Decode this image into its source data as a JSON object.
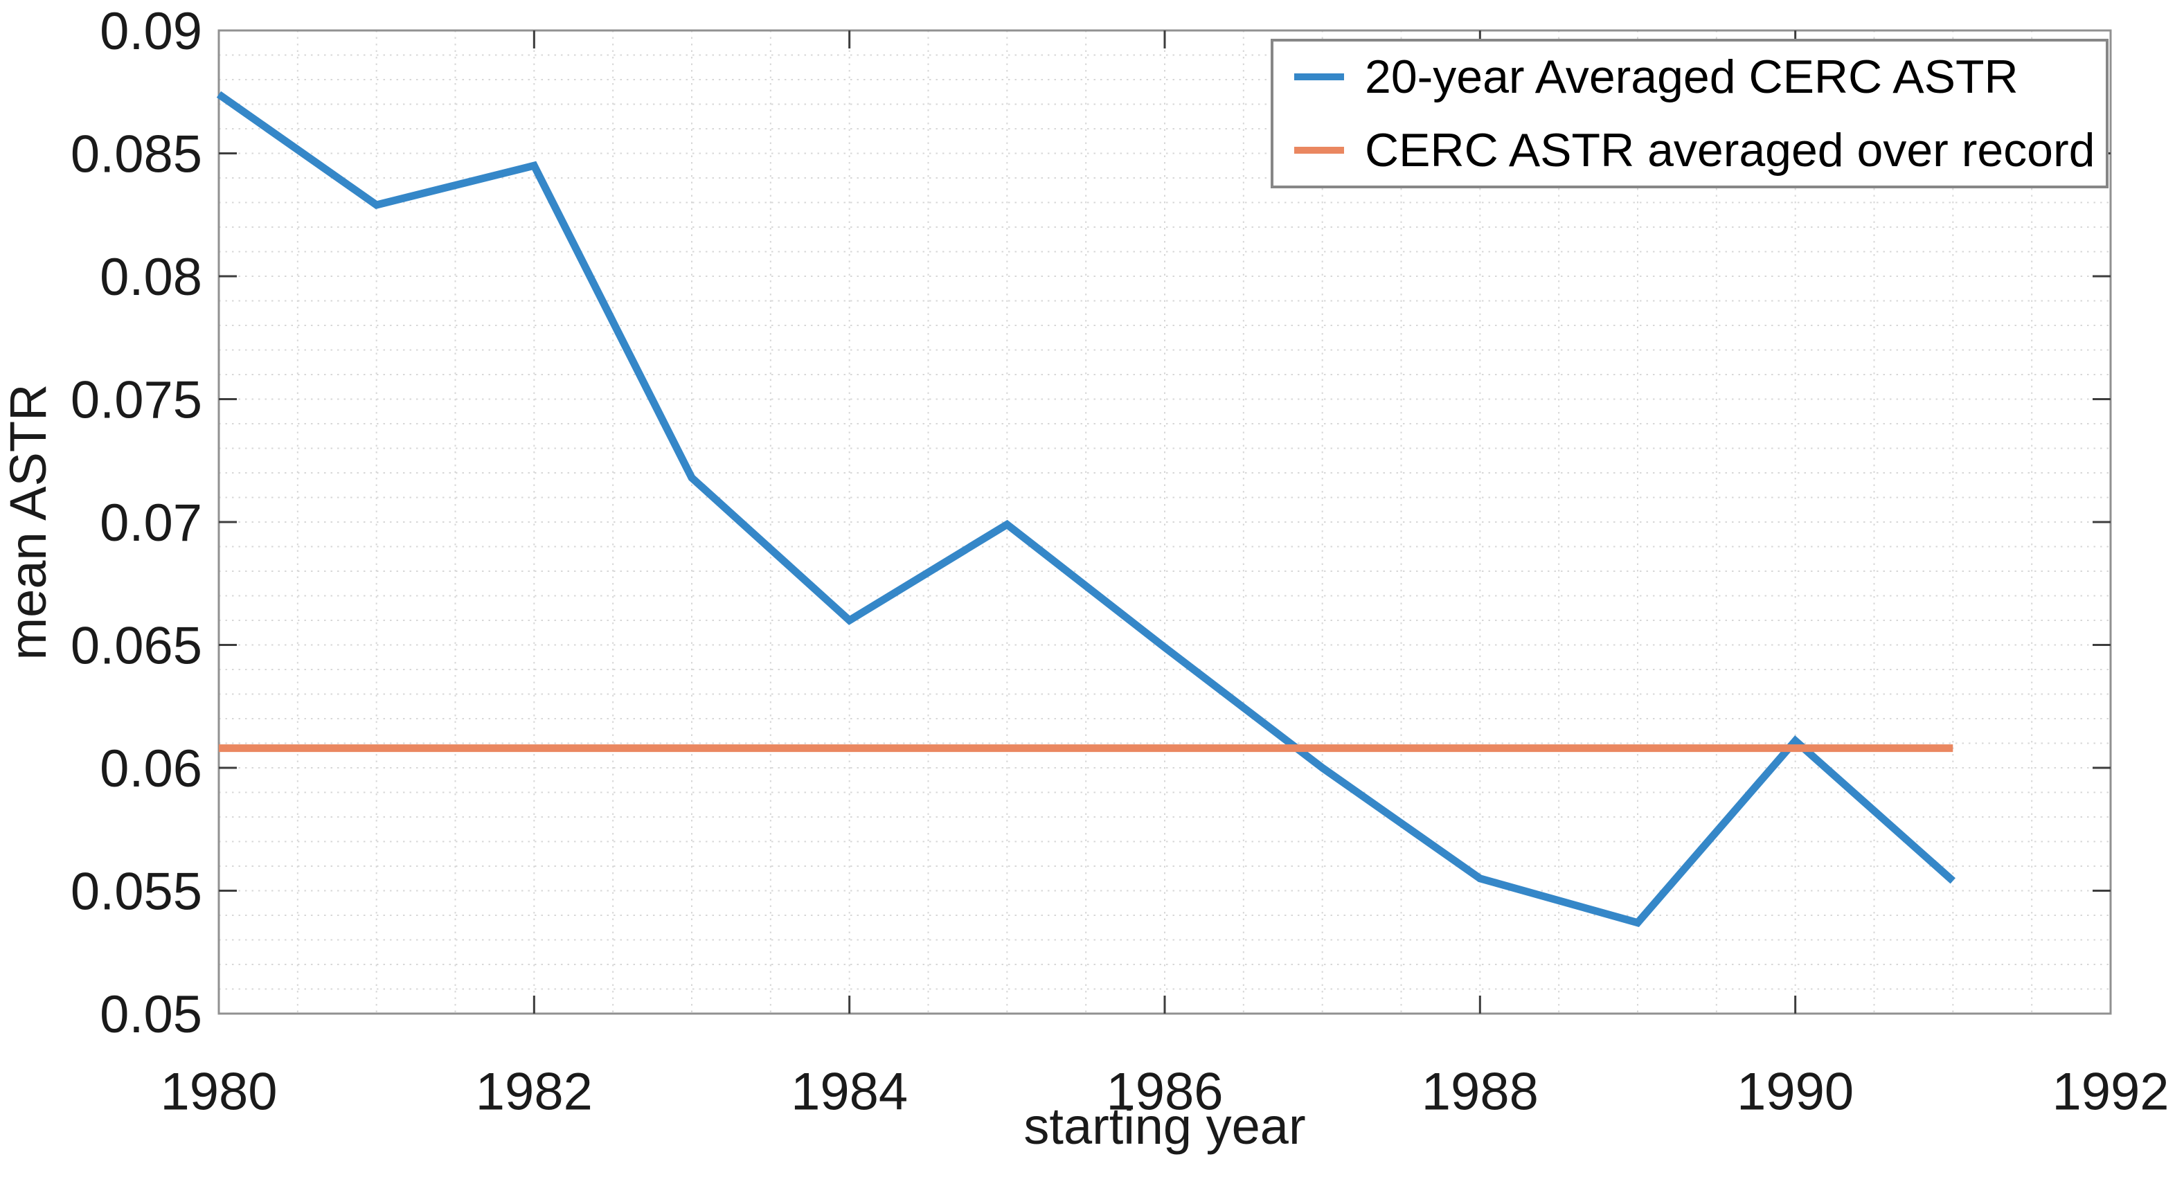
{
  "chart_data": {
    "type": "line",
    "title": "",
    "xlabel": "starting year",
    "ylabel": "mean ASTR",
    "xlim": [
      1980,
      1992
    ],
    "ylim": [
      0.05,
      0.09
    ],
    "x_major_ticks": [
      1980,
      1982,
      1984,
      1986,
      1988,
      1990,
      1992
    ],
    "x_tick_labels": [
      "1980",
      "1982",
      "1984",
      "1986",
      "1988",
      "1990",
      "1992"
    ],
    "y_major_ticks": [
      0.05,
      0.055,
      0.06,
      0.065,
      0.07,
      0.075,
      0.08,
      0.085,
      0.09
    ],
    "y_tick_labels": [
      "0.05",
      "0.055",
      "0.06",
      "0.065",
      "0.07",
      "0.075",
      "0.08",
      "0.085",
      "0.09"
    ],
    "x_minor_step": 0.5,
    "y_minor_step": 0.001,
    "grid": "minor-dotted",
    "legend_position": "northeast",
    "x": [
      1980,
      1981,
      1982,
      1983,
      1984,
      1985,
      1986,
      1987,
      1988,
      1989,
      1990,
      1991
    ],
    "series": [
      {
        "name": "20-year Averaged CERC ASTR",
        "color": "#3587C8",
        "values": [
          0.0874,
          0.0829,
          0.0845,
          0.0718,
          0.066,
          0.0699,
          0.0649,
          0.06,
          0.0555,
          0.0537,
          0.0611,
          0.0554
        ]
      },
      {
        "name": "CERC ASTR averaged over record",
        "color": "#EA8760",
        "constant_value": 0.0608,
        "values": [
          0.0608,
          0.0608,
          0.0608,
          0.0608,
          0.0608,
          0.0608,
          0.0608,
          0.0608,
          0.0608,
          0.0608,
          0.0608,
          0.0608
        ]
      }
    ]
  },
  "legend": {
    "entries": [
      {
        "label": "20-year Averaged CERC ASTR",
        "color": "#3587C8"
      },
      {
        "label": "CERC ASTR averaged over record",
        "color": "#EA8760"
      }
    ]
  },
  "colors": {
    "axis_box": "#919191",
    "tick_mark": "#3d3d3d",
    "grid_minor": "#d7d7d7",
    "label_text": "#1a1a1a"
  }
}
